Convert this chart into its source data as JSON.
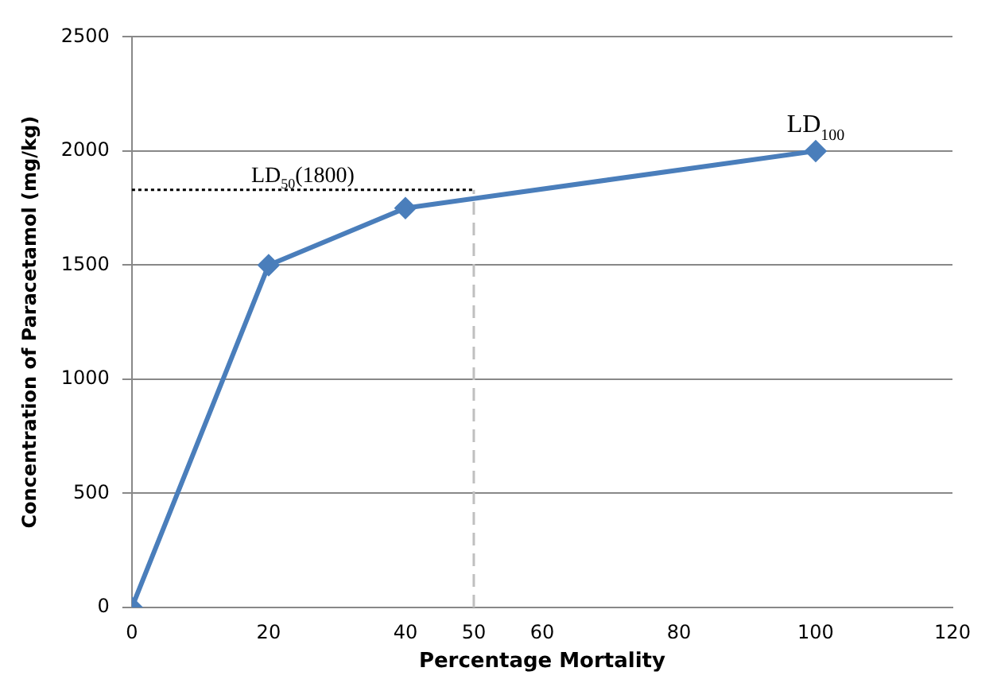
{
  "chart_data": {
    "type": "line",
    "xlabel": "Percentage Mortality",
    "ylabel": "Concentration of Paracetamol (mg/kg)",
    "x": [
      0,
      20,
      40,
      100
    ],
    "series": [
      {
        "color": "#4a7ebb",
        "values": [
          0,
          1500,
          1750,
          2000
        ]
      }
    ],
    "marker": "diamond",
    "line_style": "solid",
    "grid": "y",
    "legend": false,
    "xlim": [
      0,
      120
    ],
    "xticks": [
      0,
      20,
      40,
      50,
      60,
      80,
      100,
      120
    ],
    "ylim": [
      0,
      2500
    ],
    "yticks": [
      0,
      500,
      1000,
      1500,
      2000,
      2500
    ],
    "ref_lines": [
      {
        "axis": "y",
        "value": 1830,
        "label": "LD$_{50}$(1800)",
        "color": "#000000",
        "line_style": "dotted"
      },
      {
        "axis": "x",
        "value": 50,
        "color": "#bfbfbf",
        "line_style": "dashed"
      }
    ],
    "annotations": [
      {
        "text": "LD$_{100}$",
        "x": 100,
        "y": 2000
      }
    ]
  }
}
